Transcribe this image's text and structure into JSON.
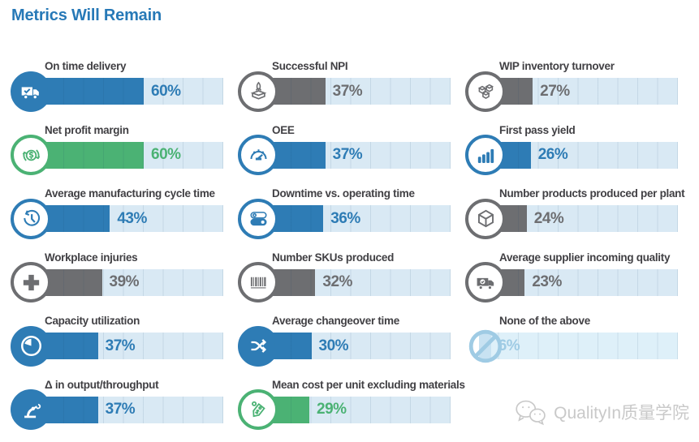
{
  "title": "Metrics Will Remain",
  "colors": {
    "blue": "#2e7cb5",
    "green": "#4bb274",
    "gray": "#6d6e71",
    "lightblue": "#9fcbe4",
    "track": "#d9e9f4",
    "title_blue": "#2779b7",
    "label_text": "#414044",
    "watermark_gray": "#c9c9c9"
  },
  "watermark": {
    "label": "QualityIn质量学院",
    "icon": "wechat-icon"
  },
  "chart_data": {
    "type": "bar",
    "orientation": "horizontal",
    "title": "Metrics Will Remain",
    "unit": "%",
    "xlim": [
      0,
      100
    ],
    "gridline_step_percent": 10,
    "legend": "none",
    "items": [
      {
        "label": "On time delivery",
        "value": 60,
        "color": "blue",
        "icon": "delivery-truck-check-icon",
        "badge": "filled",
        "column": 0
      },
      {
        "label": "Net profit margin",
        "value": 60,
        "color": "green",
        "icon": "dollar-cycle-icon",
        "badge": "outline",
        "column": 0
      },
      {
        "label": "Average manufacturing cycle time",
        "value": 43,
        "color": "blue",
        "icon": "cycle-time-clock-icon",
        "badge": "outline",
        "column": 0
      },
      {
        "label": "Workplace injuries",
        "value": 39,
        "color": "gray",
        "icon": "medical-cross-icon",
        "badge": "outline",
        "column": 0
      },
      {
        "label": "Capacity utilization",
        "value": 37,
        "color": "blue",
        "icon": "pie-gauge-icon",
        "badge": "filled",
        "column": 0
      },
      {
        "label": "Δ in output/throughput",
        "value": 37,
        "color": "blue",
        "icon": "robot-arm-icon",
        "badge": "filled",
        "column": 0
      },
      {
        "label": "Successful NPI",
        "value": 37,
        "color": "gray",
        "icon": "rocket-launch-box-icon",
        "badge": "outline",
        "column": 1
      },
      {
        "label": "OEE",
        "value": 37,
        "color": "blue",
        "icon": "gauge-icon",
        "badge": "outline",
        "column": 1
      },
      {
        "label": "Downtime vs. operating time",
        "value": 36,
        "color": "blue",
        "icon": "toggle-switches-icon",
        "badge": "outline",
        "column": 1
      },
      {
        "label": "Number SKUs produced",
        "value": 32,
        "color": "gray",
        "icon": "barcode-icon",
        "badge": "outline",
        "column": 1
      },
      {
        "label": "Average changeover time",
        "value": 30,
        "color": "blue",
        "icon": "shuffle-arrows-icon",
        "badge": "filled",
        "column": 1
      },
      {
        "label": "Mean cost per unit excluding materials",
        "value": 29,
        "color": "green",
        "icon": "price-tag-icon",
        "badge": "outline",
        "column": 1
      },
      {
        "label": "WIP inventory turnover",
        "value": 27,
        "color": "gray",
        "icon": "stacked-cubes-icon",
        "badge": "outline",
        "column": 2
      },
      {
        "label": "First pass yield",
        "value": 26,
        "color": "blue",
        "icon": "bar-chart-icon",
        "badge": "outline",
        "column": 2
      },
      {
        "label": "Number products produced per plant",
        "value": 24,
        "color": "gray",
        "icon": "cube-icon",
        "badge": "outline",
        "column": 2
      },
      {
        "label": "Average supplier incoming quality",
        "value": 23,
        "color": "gray",
        "icon": "quality-truck-icon",
        "badge": "outline",
        "column": 2
      },
      {
        "label": "None of the above",
        "value": 6,
        "color": "lightblue",
        "icon": "ban-icon",
        "badge": "none",
        "column": 2,
        "fill": "#c8e2f2",
        "track": "#def0f9"
      }
    ]
  }
}
